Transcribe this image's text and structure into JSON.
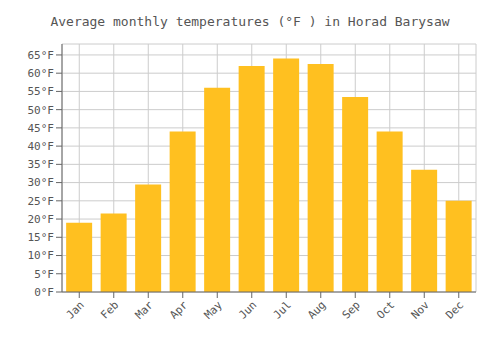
{
  "chart_data": {
    "type": "bar",
    "title": "Average monthly temperatures (°F ) in Horad Barysaw",
    "categories": [
      "Jan",
      "Feb",
      "Mar",
      "Apr",
      "May",
      "Jun",
      "Jul",
      "Aug",
      "Sep",
      "Oct",
      "Nov",
      "Dec"
    ],
    "values": [
      19,
      21.5,
      29.5,
      44,
      56,
      62,
      64,
      62.5,
      53.5,
      44,
      33.5,
      25
    ],
    "color": "#FFC020",
    "ylim": [
      0,
      68
    ],
    "yticks": [
      {
        "value": 0,
        "label": "0°F"
      },
      {
        "value": 5,
        "label": "5°F"
      },
      {
        "value": 10,
        "label": "10°F"
      },
      {
        "value": 15,
        "label": "15°F"
      },
      {
        "value": 20,
        "label": "20°F"
      },
      {
        "value": 25,
        "label": "25°F"
      },
      {
        "value": 30,
        "label": "30°F"
      },
      {
        "value": 35,
        "label": "35°F"
      },
      {
        "value": 40,
        "label": "40°F"
      },
      {
        "value": 45,
        "label": "45°F"
      },
      {
        "value": 50,
        "label": "50°F"
      },
      {
        "value": 55,
        "label": "55°F"
      },
      {
        "value": 60,
        "label": "60°F"
      },
      {
        "value": 65,
        "label": "65°F"
      }
    ],
    "grid": true
  }
}
